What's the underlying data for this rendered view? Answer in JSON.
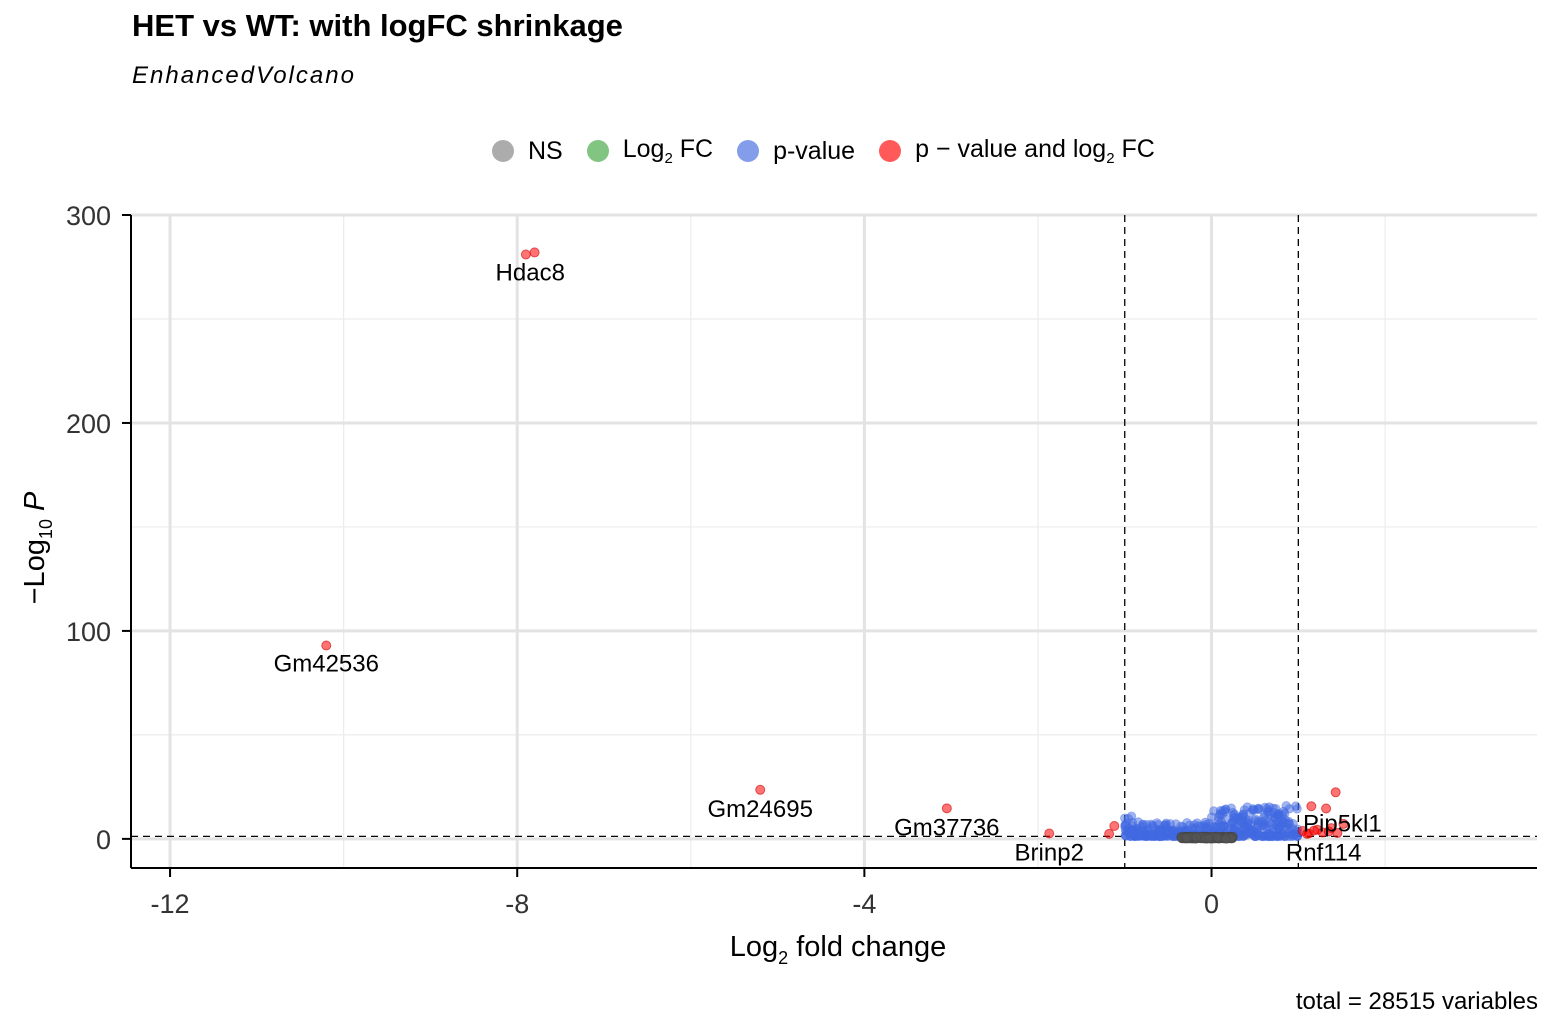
{
  "chart_data": {
    "type": "scatter",
    "title": "HET vs WT: with logFC shrinkage",
    "subtitle": "EnhancedVolcano",
    "caption": "total = 28515 variables",
    "xlabel": "Log2 fold change",
    "ylabel": "−Log10 P",
    "xlim": [
      -12.45,
      3.75
    ],
    "ylim": [
      -14,
      300
    ],
    "x_ticks": [
      -12,
      -8,
      -4,
      0
    ],
    "y_ticks": [
      0,
      100,
      200,
      300
    ],
    "fc_cutoff": [
      -1,
      1
    ],
    "p_cutoff_line": 1.2,
    "grid": true,
    "legend_position": "top",
    "legend": [
      {
        "key": "ns",
        "label": "NS",
        "color": "#808080"
      },
      {
        "key": "fc",
        "label": "Log2 FC",
        "color": "#3fa63f"
      },
      {
        "key": "p",
        "label": "p-value",
        "color": "#4169e1"
      },
      {
        "key": "pfc",
        "label": "p − value and log2 FC",
        "color": "#ff0000"
      }
    ],
    "series": [
      {
        "name": "p − value and log2 FC",
        "points": [
          [
            -7.9,
            281
          ],
          [
            -7.8,
            282
          ],
          [
            -10.2,
            93
          ],
          [
            -5.2,
            23.6
          ],
          [
            -3.05,
            14.7
          ],
          [
            -1.87,
            2.6
          ],
          [
            -1.12,
            6.2
          ],
          [
            -1.18,
            2.4
          ],
          [
            1.15,
            15.7
          ],
          [
            1.32,
            14.6
          ],
          [
            1.43,
            22.4
          ],
          [
            1.52,
            7.2
          ],
          [
            1.05,
            3.8
          ],
          [
            1.12,
            2.6
          ],
          [
            1.22,
            4.4
          ],
          [
            1.28,
            3.1
          ],
          [
            1.38,
            5.2
          ],
          [
            1.45,
            2.8
          ],
          [
            1.1,
            2.4
          ],
          [
            1.35,
            3.6
          ],
          [
            1.18,
            4.0
          ]
        ]
      },
      {
        "name": "p-value",
        "region": "cluster",
        "x_range": [
          -1.0,
          1.0
        ],
        "y_max": 16
      },
      {
        "name": "NS",
        "region": "cluster",
        "x_range": [
          -0.35,
          0.25
        ],
        "y_max": 1.2
      }
    ],
    "labels": [
      {
        "text": "Hdac8",
        "x": -7.85,
        "y": 281
      },
      {
        "text": "Gm42536",
        "x": -10.2,
        "y": 93
      },
      {
        "text": "Gm24695",
        "x": -5.2,
        "y": 23.6
      },
      {
        "text": "Gm37736",
        "x": -3.05,
        "y": 14.7
      },
      {
        "text": "Brinp2",
        "x": -1.87,
        "y": 2.6
      },
      {
        "text": "Pip5kl1",
        "x": 1.3,
        "y": 5.0
      },
      {
        "text": "Rnf114",
        "x": 1.2,
        "y": 2.6
      }
    ]
  }
}
